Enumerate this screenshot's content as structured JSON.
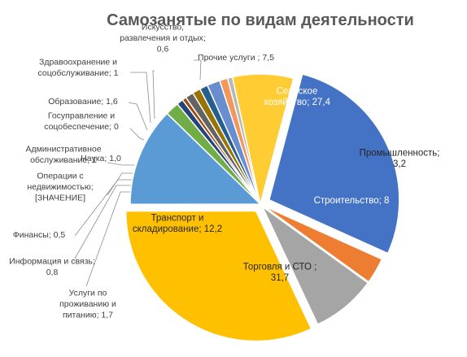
{
  "chart_data": {
    "type": "pie",
    "title": "Самозанятые  по видам деятельности",
    "slices": [
      {
        "name": "Сельское хозяйство",
        "value": 27.4,
        "color": "#4472C4",
        "label": [
          "Сельское",
          "хозяйство; 27,4"
        ]
      },
      {
        "name": "Промышленность",
        "value": 3.2,
        "color": "#ED7D31",
        "label": [
          "Промышленность;",
          "3,2"
        ]
      },
      {
        "name": "Строительство",
        "value": 8,
        "color": "#A5A5A5",
        "label": [
          "Строительство; 8"
        ]
      },
      {
        "name": "Торговля и СТО",
        "value": 31.7,
        "color": "#FFC000",
        "label": [
          "Торговля и СТО ;",
          "31,7"
        ]
      },
      {
        "name": "Транспорт и складирование",
        "value": 12.2,
        "color": "#5B9BD5",
        "label": [
          "Транспорт и",
          "складирование; 12,2"
        ]
      },
      {
        "name": "Услуги по проживанию и питанию",
        "value": 1.7,
        "color": "#70AD47",
        "label": [
          "Услуги по",
          "проживанию и",
          "питанию; 1,7"
        ]
      },
      {
        "name": "Информация и связь",
        "value": 0.8,
        "color": "#264478",
        "label": [
          "Информация и связь;",
          "0,8"
        ]
      },
      {
        "name": "Финансы",
        "value": 0.5,
        "color": "#9E480E",
        "label": [
          "Финансы; 0,5"
        ]
      },
      {
        "name": "Операции с недвижимостью",
        "value": 1,
        "color": "#636363",
        "label": [
          "Операции с",
          "недвижимостью;",
          "[ЗНАЧЕНИЕ]"
        ]
      },
      {
        "name": "Административное обслуживание",
        "value": 1,
        "color": "#997300",
        "label": [
          "Административное",
          "обслуживание; 1"
        ]
      },
      {
        "name": "Наука",
        "value": 1,
        "color": "#255E91",
        "label": [
          "Наука; 1,0"
        ]
      },
      {
        "name": "Госуправление и соцобеспечение",
        "value": 0,
        "color": "#43682B",
        "label": [
          "Госуправление и",
          "соцобеспечение; 0"
        ]
      },
      {
        "name": "Образование",
        "value": 1.6,
        "color": "#698ED0",
        "label": [
          "Образование; 1,6"
        ]
      },
      {
        "name": "Здравоохранение и соцобслуживание",
        "value": 1,
        "color": "#F1975A",
        "label": [
          "Здравоохранение и",
          "соцобслуживание; 1"
        ]
      },
      {
        "name": "Искусство, развлечения и отдых",
        "value": 0.6,
        "color": "#B7B7B7",
        "label": [
          "Искусство,",
          "развлечения и отдых;",
          "0,6"
        ]
      },
      {
        "name": "Прочие услуги",
        "value": 7.5,
        "color": "#FFCD33",
        "label": [
          "Прочие услуги ; 7,5"
        ]
      }
    ]
  }
}
